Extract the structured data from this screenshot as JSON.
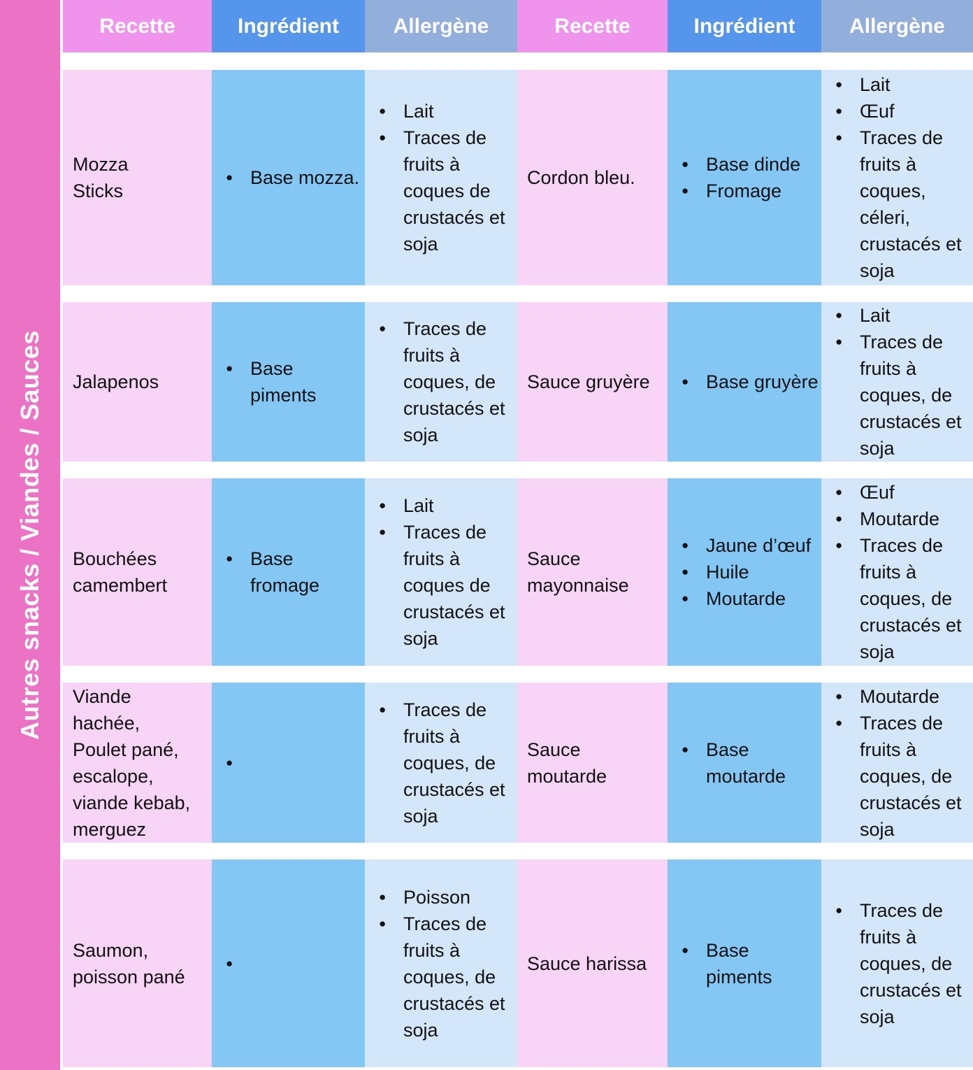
{
  "sidebar": {
    "label": "Autres snacks / Viandes / Sauces"
  },
  "header": {
    "recette": "Recette",
    "ingredient": "Ingrédient",
    "allergene": "Allergène"
  },
  "colors": {
    "sidebar_pink": "#EC72C6",
    "header_recette": "#EF93EC",
    "header_ingredient": "#5596EC",
    "header_allergene": "#92AEDB",
    "cell_recette": "#F8D4F7",
    "cell_ingredient": "#84C7F5",
    "cell_allergene": "#D4E7FA",
    "header_text": "#FFFFFF",
    "body_text": "#111111"
  },
  "rows": [
    {
      "left": {
        "recette": "Mozza\nSticks",
        "ingredients": [
          "Base mozza."
        ],
        "allergens": [
          "Lait",
          "Traces de\nfruits à\ncoques de\ncrustacés et\nsoja"
        ]
      },
      "right": {
        "recette": "Cordon bleu.",
        "ingredients": [
          "Base dinde",
          "Fromage"
        ],
        "allergens": [
          "Lait",
          "Œuf",
          "Traces de\nfruits à\ncoques,\ncéleri,\ncrustacés et\nsoja"
        ]
      }
    },
    {
      "left": {
        "recette": "Jalapenos",
        "ingredients": [
          "Base\npiments"
        ],
        "allergens": [
          "Traces de\nfruits à\ncoques, de\ncrustacés et\nsoja"
        ]
      },
      "right": {
        "recette": "Sauce gruyère",
        "ingredients": [
          "Base gruyère"
        ],
        "allergens": [
          "Lait",
          "Traces de\nfruits à\ncoques, de\ncrustacés et\nsoja"
        ]
      }
    },
    {
      "left": {
        "recette": "Bouchées\ncamembert",
        "ingredients": [
          "Base\nfromage"
        ],
        "allergens": [
          "Lait",
          "Traces de\nfruits à\ncoques de\ncrustacés et\nsoja"
        ]
      },
      "right": {
        "recette": "Sauce\nmayonnaise",
        "ingredients": [
          "Jaune d’œuf",
          "Huile",
          "Moutarde"
        ],
        "allergens": [
          "Œuf",
          "Moutarde",
          "Traces de\nfruits à\ncoques, de\ncrustacés et\nsoja"
        ]
      }
    },
    {
      "left": {
        "recette": "Viande\nhachée,\nPoulet pané,\nescalope,\nviande kebab,\nmerguez",
        "ingredients": [
          ""
        ],
        "allergens": [
          "Traces de\nfruits à\ncoques, de\ncrustacés et\nsoja"
        ]
      },
      "right": {
        "recette": "Sauce\nmoutarde",
        "ingredients": [
          "Base\nmoutarde"
        ],
        "allergens": [
          "Moutarde",
          "Traces de\nfruits à\ncoques, de\ncrustacés et\nsoja"
        ]
      }
    },
    {
      "left": {
        "recette": "Saumon,\npoisson pané",
        "ingredients": [
          ""
        ],
        "allergens": [
          "Poisson",
          "Traces de\nfruits à\ncoques, de\ncrustacés et\nsoja"
        ]
      },
      "right": {
        "recette": "Sauce harissa",
        "ingredients": [
          "Base\npiments"
        ],
        "allergens": [
          "Traces de\nfruits à\ncoques, de\ncrustacés et\nsoja"
        ]
      }
    }
  ]
}
